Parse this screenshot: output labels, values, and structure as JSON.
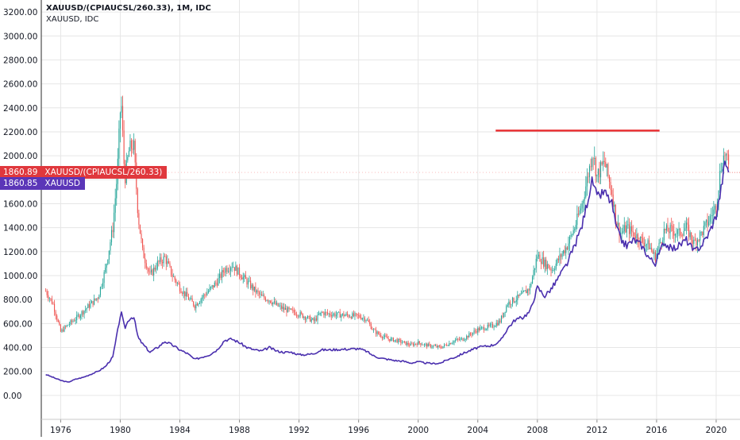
{
  "legend": {
    "line1": "XAUUSD/(CPIAUCSL/260.33), 1M, IDC",
    "line2": "XAUUSD, IDC"
  },
  "price_tags": [
    {
      "value": "1860.89",
      "name": "XAUUSD/(CPIAUCSL/260.33)",
      "color": "#e0383d"
    },
    {
      "value": "1860.85",
      "name": "XAUUSD",
      "color": "#5b36b8"
    }
  ],
  "colors": {
    "up": "#26a69a",
    "down": "#ef5350",
    "nominal_line": "#4a2fae",
    "horizontal_line": "#e8282c",
    "grid": "#e6e6e6",
    "axis_text": "#131722"
  },
  "chart_data": {
    "type": "line",
    "title": "",
    "xlabel": "",
    "ylabel": "",
    "ylim": [
      -200,
      3300
    ],
    "xlim": [
      1974.7,
      2021.6
    ],
    "y_ticks": [
      "3200.00",
      "3000.00",
      "2800.00",
      "2600.00",
      "2400.00",
      "2200.00",
      "2000.00",
      "1800.00",
      "1600.00",
      "1400.00",
      "1200.00",
      "1000.00",
      "800.00",
      "600.00",
      "400.00",
      "200.00",
      "0.00"
    ],
    "x_ticks": [
      "1976",
      "1980",
      "1984",
      "1988",
      "1992",
      "1996",
      "2000",
      "2004",
      "2008",
      "2012",
      "2016",
      "2020"
    ],
    "series": [
      {
        "name": "XAUUSD/(CPIAUCSL/260.33)",
        "style": "candles",
        "x": [
          1975.0,
          1975.5,
          1976.0,
          1976.5,
          1977.0,
          1977.5,
          1978.0,
          1978.5,
          1979.0,
          1979.5,
          1979.8,
          1980.05,
          1980.3,
          1980.6,
          1980.9,
          1981.2,
          1981.5,
          1982.0,
          1982.5,
          1983.0,
          1983.5,
          1984.0,
          1984.5,
          1985.0,
          1985.5,
          1986.0,
          1986.5,
          1987.0,
          1987.5,
          1988.0,
          1988.5,
          1989.0,
          1989.5,
          1990.0,
          1990.5,
          1991.0,
          1991.5,
          1992.0,
          1992.5,
          1993.0,
          1993.5,
          1994.0,
          1995.0,
          1996.0,
          1996.5,
          1997.0,
          1997.5,
          1998.0,
          1998.5,
          1999.0,
          1999.5,
          2000.0,
          2000.5,
          2001.0,
          2001.5,
          2002.0,
          2002.5,
          2003.0,
          2004.0,
          2005.0,
          2005.5,
          2006.0,
          2006.5,
          2007.0,
          2007.5,
          2008.0,
          2008.5,
          2009.0,
          2009.5,
          2010.0,
          2010.5,
          2011.0,
          2011.5,
          2011.7,
          2012.0,
          2012.5,
          2013.0,
          2013.3,
          2013.6,
          2014.0,
          2014.5,
          2015.0,
          2015.5,
          2015.9,
          2016.5,
          2017.0,
          2017.5,
          2018.0,
          2018.5,
          2019.0,
          2019.5,
          2020.0,
          2020.3,
          2020.6,
          2020.9
        ],
        "values": [
          870,
          760,
          530,
          590,
          640,
          700,
          760,
          820,
          1050,
          1400,
          1850,
          2500,
          1800,
          2050,
          2100,
          1500,
          1200,
          1000,
          1100,
          1150,
          1000,
          900,
          820,
          750,
          820,
          880,
          950,
          1050,
          1090,
          1020,
          950,
          880,
          820,
          800,
          750,
          720,
          700,
          680,
          650,
          620,
          690,
          680,
          670,
          660,
          640,
          540,
          500,
          470,
          460,
          440,
          420,
          440,
          420,
          410,
          400,
          430,
          460,
          470,
          550,
          580,
          620,
          770,
          800,
          840,
          900,
          1170,
          1100,
          1050,
          1150,
          1250,
          1400,
          1600,
          1900,
          2050,
          1830,
          1950,
          1700,
          1450,
          1350,
          1400,
          1350,
          1290,
          1250,
          1150,
          1370,
          1380,
          1350,
          1400,
          1270,
          1350,
          1460,
          1580,
          1900,
          2030,
          1860
        ]
      },
      {
        "name": "XAUUSD",
        "style": "line",
        "x": [
          1975.0,
          1975.5,
          1976.0,
          1976.5,
          1977.0,
          1977.5,
          1978.0,
          1978.5,
          1979.0,
          1979.5,
          1979.8,
          1980.05,
          1980.3,
          1980.6,
          1980.9,
          1981.2,
          1981.5,
          1982.0,
          1982.5,
          1983.0,
          1983.5,
          1984.0,
          1984.5,
          1985.0,
          1985.5,
          1986.0,
          1986.5,
          1987.0,
          1987.5,
          1988.0,
          1988.5,
          1989.0,
          1989.5,
          1990.0,
          1990.5,
          1991.0,
          1991.5,
          1992.0,
          1992.5,
          1993.0,
          1993.5,
          1994.0,
          1995.0,
          1996.0,
          1996.5,
          1997.0,
          1997.5,
          1998.0,
          1998.5,
          1999.0,
          1999.5,
          2000.0,
          2000.5,
          2001.0,
          2001.5,
          2002.0,
          2002.5,
          2003.0,
          2004.0,
          2005.0,
          2005.5,
          2006.0,
          2006.5,
          2007.0,
          2007.5,
          2008.0,
          2008.5,
          2009.0,
          2009.5,
          2010.0,
          2010.5,
          2011.0,
          2011.5,
          2011.7,
          2012.0,
          2012.5,
          2013.0,
          2013.3,
          2013.6,
          2014.0,
          2014.5,
          2015.0,
          2015.5,
          2015.9,
          2016.5,
          2017.0,
          2017.5,
          2018.0,
          2018.5,
          2019.0,
          2019.5,
          2020.0,
          2020.3,
          2020.6,
          2020.9
        ],
        "values": [
          175,
          150,
          125,
          110,
          135,
          150,
          175,
          200,
          240,
          320,
          520,
          700,
          560,
          640,
          660,
          480,
          430,
          360,
          400,
          450,
          420,
          380,
          350,
          300,
          320,
          340,
          380,
          460,
          470,
          440,
          400,
          380,
          370,
          400,
          370,
          360,
          360,
          340,
          340,
          350,
          380,
          380,
          385,
          390,
          370,
          330,
          310,
          300,
          290,
          285,
          270,
          280,
          270,
          265,
          270,
          300,
          320,
          350,
          400,
          420,
          450,
          560,
          630,
          650,
          700,
          900,
          830,
          900,
          1000,
          1100,
          1250,
          1420,
          1700,
          1800,
          1650,
          1700,
          1600,
          1400,
          1300,
          1250,
          1300,
          1250,
          1150,
          1100,
          1280,
          1220,
          1250,
          1300,
          1200,
          1250,
          1350,
          1500,
          1700,
          1950,
          1860
        ]
      }
    ],
    "annotations": [
      {
        "type": "horizontal-segment",
        "y": 2210,
        "x_start": 2005.2,
        "x_end": 2016.2
      }
    ],
    "grid": true,
    "legend_position": "top-left"
  }
}
